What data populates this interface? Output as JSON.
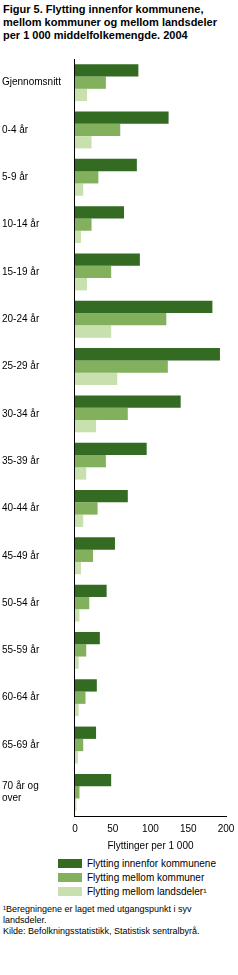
{
  "chart_data": {
    "type": "bar",
    "orientation": "horizontal",
    "title": "Figur 5. Flytting innenfor kommunene, mellom kommuner og mellom landsdeler per 1 000 middelfolkemengde. 2004",
    "x_label": "Flyttinger per 1 000",
    "footnote": "¹Beregningene er laget med utgangspunkt i syv landsdeler.",
    "source": "Kilde: Befolkningsstatistikk, Statistisk sentralbyrå.",
    "categories": [
      "Gjennomsnitt",
      "0-4 år",
      "5-9 år",
      "10-14 år",
      "15-19 år",
      "20-24 år",
      "25-29 år",
      "30-34 år",
      "35-39 år",
      "40-44 år",
      "45-49 år",
      "50-54 år",
      "55-59 år",
      "60-64 år",
      "65-69 år",
      "70 år og over"
    ],
    "series": [
      {
        "name": "Flytting innenfor kommunene",
        "color": "#336b22",
        "values": [
          84,
          124,
          82,
          65,
          86,
          182,
          192,
          140,
          95,
          70,
          53,
          42,
          33,
          29,
          28,
          48
        ]
      },
      {
        "name": "Flytting mellom kommuner",
        "color": "#82b05c",
        "values": [
          41,
          60,
          31,
          22,
          48,
          121,
          123,
          70,
          41,
          30,
          24,
          19,
          15,
          14,
          11,
          6
        ]
      },
      {
        "name": "Flytting mellom landsdeler¹",
        "color": "#c8e0ae",
        "values": [
          16,
          22,
          11,
          8,
          16,
          48,
          56,
          28,
          15,
          11,
          8,
          6,
          5,
          5,
          4,
          2
        ]
      }
    ],
    "xlim": [
      0,
      200
    ],
    "xticks": [
      0,
      50,
      100,
      150,
      200
    ],
    "grid": false,
    "legend": "bottom"
  }
}
